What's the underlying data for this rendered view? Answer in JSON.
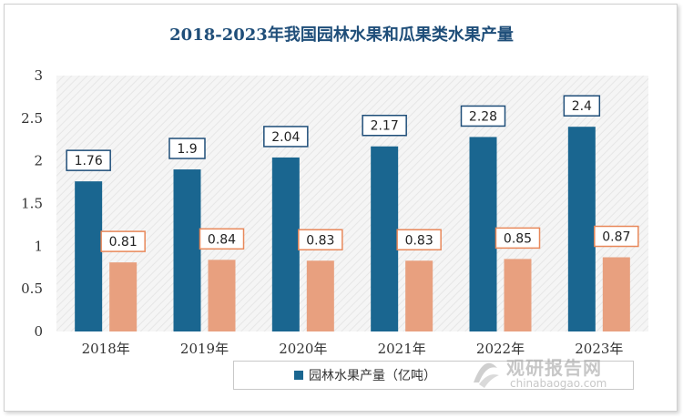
{
  "chart_data": {
    "type": "bar",
    "title": "2018-2023年我国园林水果和瓜果类水果产量",
    "categories": [
      "2018年",
      "2019年",
      "2020年",
      "2021年",
      "2022年",
      "2023年"
    ],
    "series": [
      {
        "name": "园林水果产量（亿吨）",
        "values": [
          1.76,
          1.9,
          2.04,
          2.17,
          2.28,
          2.4
        ],
        "color": "#1a6690"
      },
      {
        "values": [
          0.81,
          0.84,
          0.83,
          0.83,
          0.85,
          0.87
        ],
        "color": "#e8a07f"
      }
    ],
    "yticks": [
      "0",
      "0.5",
      "1",
      "1.5",
      "2",
      "2.5",
      "3"
    ],
    "ylim": [
      0,
      3
    ],
    "grid": false,
    "legend_placement": "bottom"
  },
  "watermark": {
    "text_cn": "观研报告网",
    "text_en": "chinabaogao.com"
  }
}
